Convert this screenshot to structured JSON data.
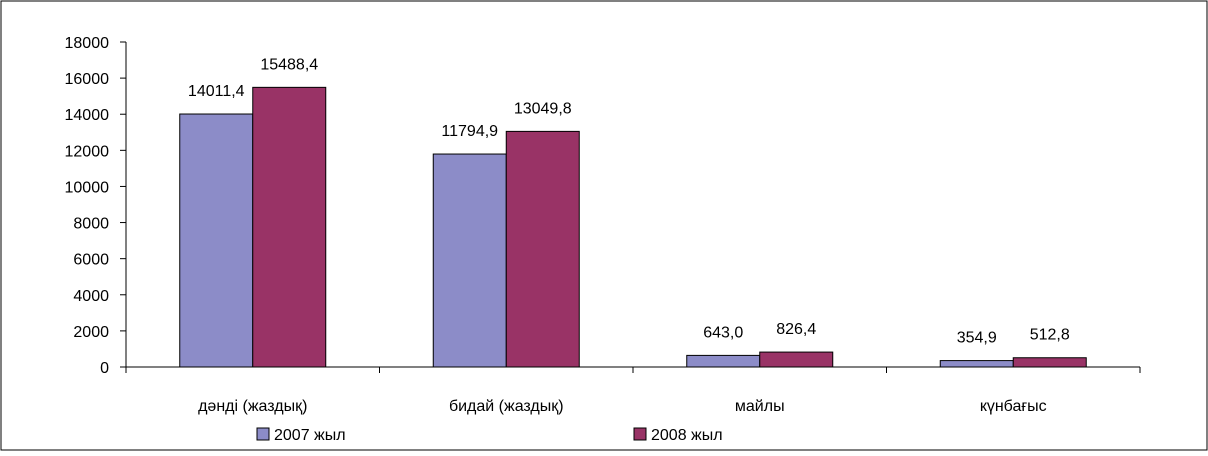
{
  "chart_data": {
    "type": "bar",
    "categories": [
      "дәнді (жаздық)",
      "бидай  (жаздық)",
      "майлы",
      "күнбағыс"
    ],
    "series": [
      {
        "name": "2007 жыл",
        "color": "#8C8CC8",
        "values": [
          14011.4,
          11794.9,
          643.0,
          354.9
        ],
        "labels": [
          "14011,4",
          "11794,9",
          "643,0",
          "354,9"
        ]
      },
      {
        "name": "2008 жыл",
        "color": "#993366",
        "values": [
          15488.4,
          13049.8,
          826.4,
          512.8
        ],
        "labels": [
          "15488,4",
          "13049,8",
          "826,4",
          "512,8"
        ]
      }
    ],
    "ylim": [
      0,
      18000
    ],
    "yticks": [
      "0",
      "2000",
      "4000",
      "6000",
      "8000",
      "10000",
      "12000",
      "14000",
      "16000",
      "18000"
    ],
    "legend": "bottom",
    "grid": false
  }
}
